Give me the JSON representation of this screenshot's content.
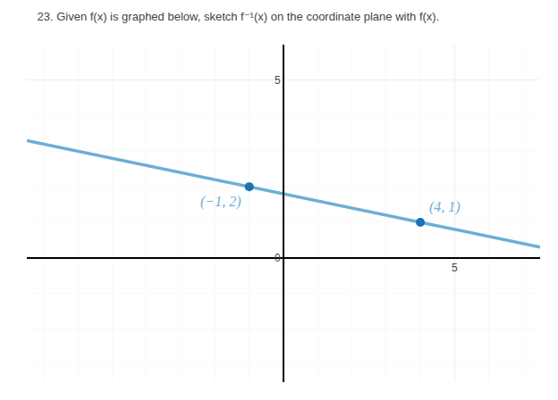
{
  "chart_data": {
    "type": "line",
    "title": "23. Given f(x) is graphed below, sketch f⁻¹(x) on the coordinate plane with f(x).",
    "xlim": [
      -7.5,
      7.5
    ],
    "ylim": [
      -3.5,
      6.0
    ],
    "xticks": [
      5
    ],
    "yticks": [
      0,
      5
    ],
    "grid": true,
    "series": [
      {
        "type": "line",
        "color": "#6baed6",
        "x": [
          -7.5,
          7.5
        ],
        "values": [
          3.3,
          0.3
        ]
      },
      {
        "type": "scatter",
        "color": "#2171b5",
        "x": [
          -1,
          4
        ],
        "values": [
          2,
          1
        ]
      }
    ],
    "annotations": [
      {
        "text": "(−1, 2)",
        "x": -1,
        "y": 2
      },
      {
        "text": "(4, 1)",
        "x": 4,
        "y": 1
      }
    ]
  }
}
